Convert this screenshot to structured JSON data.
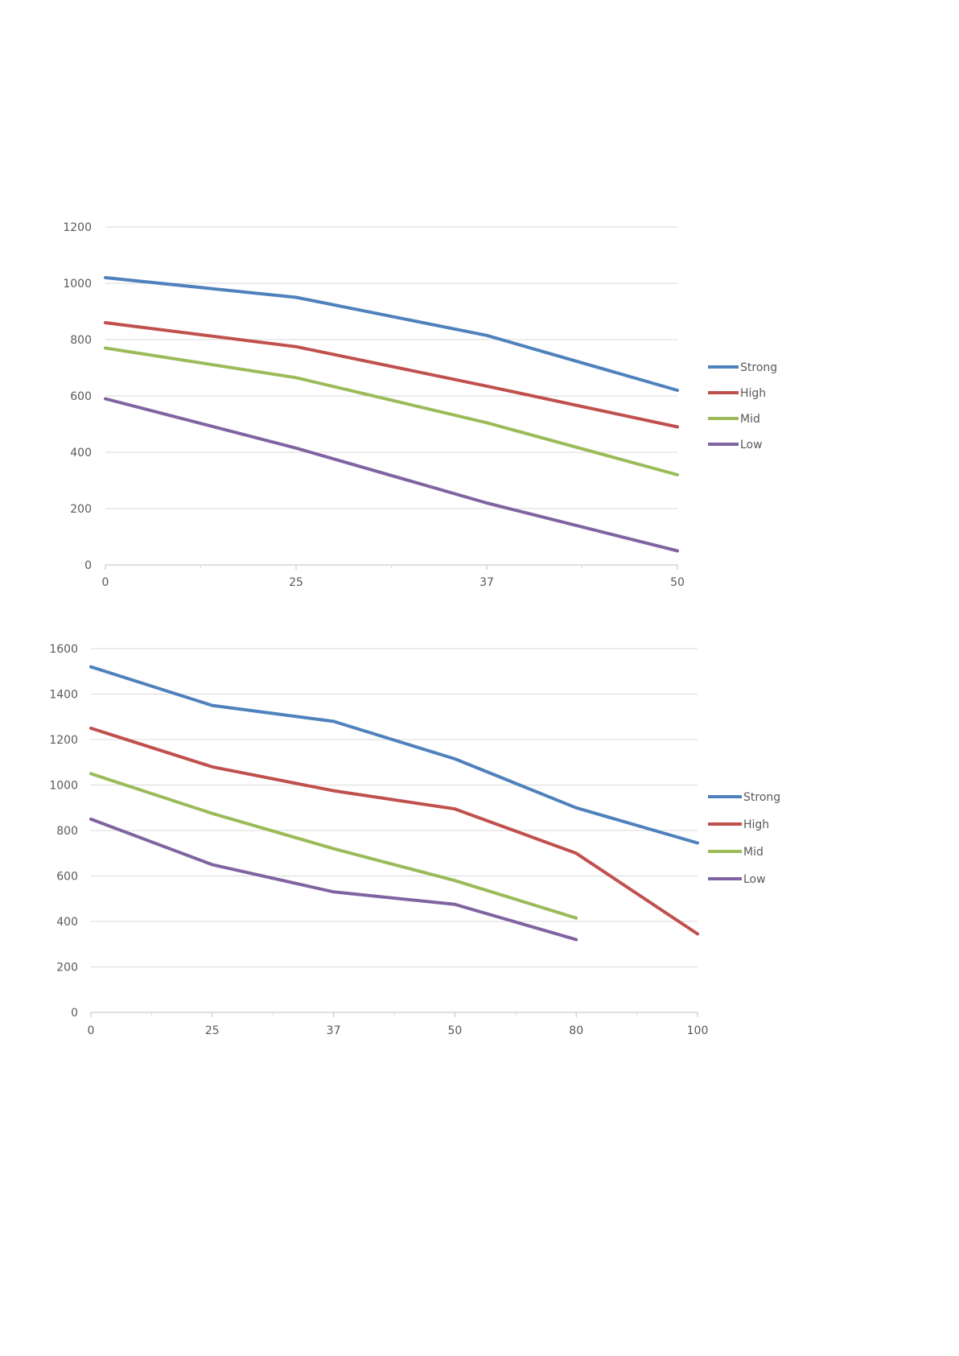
{
  "chart_data": [
    {
      "type": "line",
      "categories": [
        "0",
        "25",
        "37",
        "50"
      ],
      "yticks": [
        "0",
        "200",
        "400",
        "600",
        "800",
        "1000",
        "1200"
      ],
      "ylim": [
        0,
        1200
      ],
      "grid": true,
      "legend": "right",
      "series": [
        {
          "name": "Strong",
          "color": "#4f81bd",
          "values": [
            1020,
            950,
            815,
            620
          ]
        },
        {
          "name": "High",
          "color": "#c0504d",
          "values": [
            860,
            775,
            635,
            490
          ]
        },
        {
          "name": "Mid",
          "color": "#9bbb59",
          "values": [
            770,
            665,
            505,
            320
          ]
        },
        {
          "name": "Low",
          "color": "#8064a2",
          "values": [
            590,
            415,
            220,
            50
          ]
        }
      ]
    },
    {
      "type": "line",
      "categories": [
        "0",
        "25",
        "37",
        "50",
        "80",
        "100"
      ],
      "yticks": [
        "0",
        "200",
        "400",
        "600",
        "800",
        "1000",
        "1200",
        "1400",
        "1600"
      ],
      "ylim": [
        0,
        1600
      ],
      "grid": true,
      "legend": "right",
      "series": [
        {
          "name": "Strong",
          "color": "#4f81bd",
          "values": [
            1520,
            1350,
            1280,
            1115,
            900,
            745
          ]
        },
        {
          "name": "High",
          "color": "#c0504d",
          "values": [
            1250,
            1080,
            975,
            895,
            700,
            345
          ]
        },
        {
          "name": "Mid",
          "color": "#9bbb59",
          "values": [
            1050,
            875,
            720,
            580,
            415,
            null
          ]
        },
        {
          "name": "Low",
          "color": "#8064a2",
          "values": [
            850,
            650,
            530,
            475,
            320,
            null
          ]
        }
      ]
    }
  ]
}
